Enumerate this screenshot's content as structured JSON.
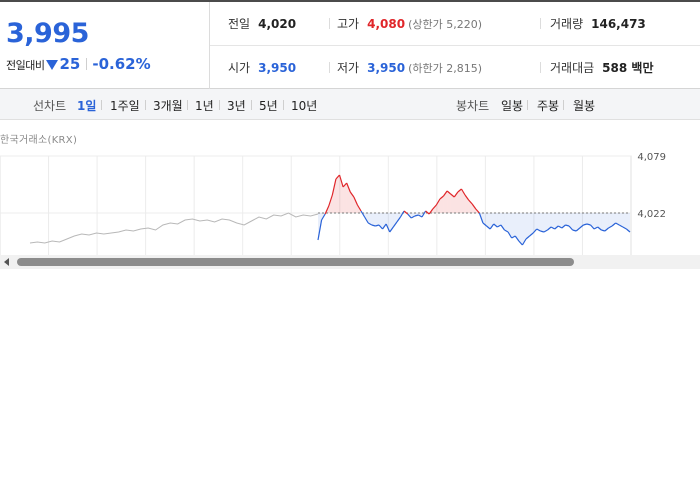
{
  "quote": {
    "price": "3,995",
    "change_label": "전일대비",
    "change_value": "25",
    "change_percent": "-0.62%",
    "direction": "down"
  },
  "summary": {
    "prev_close": {
      "label": "전일",
      "value": "4,020"
    },
    "high": {
      "label": "고가",
      "value": "4,080",
      "sub": "(상한가 5,220)"
    },
    "volume": {
      "label": "거래량",
      "value": "146,473"
    },
    "open": {
      "label": "시가",
      "value": "3,950"
    },
    "low": {
      "label": "저가",
      "value": "3,950",
      "sub": "(하한가 2,815)"
    },
    "turnover": {
      "label": "거래대금",
      "value": "588 백만"
    }
  },
  "period_bar": {
    "line_label": "선차트",
    "line_periods": [
      "1일",
      "1주일",
      "3개월",
      "1년",
      "3년",
      "5년",
      "10년"
    ],
    "active_period": "1일",
    "candle_label": "봉차트",
    "candle_periods": [
      "일봉",
      "주봉",
      "월봉"
    ]
  },
  "chart_source": "한국거래소(KRX)",
  "colors": {
    "up": "#e0262a",
    "down": "#2a63d8",
    "flat": "#b8b8b8"
  },
  "chart_data": {
    "type": "line",
    "baseline": 4022,
    "y_ticks": [
      4079,
      4022
    ],
    "y_tick_labels": [
      "4,079",
      "4,022"
    ],
    "ylim": [
      3985,
      4090
    ],
    "previous_period_values": [
      3992,
      3993,
      3992,
      3994,
      3993,
      3996,
      3999,
      4001,
      4000,
      4002,
      4001,
      4002,
      4003,
      4005,
      4004,
      4006,
      4007,
      4005,
      4010,
      4012,
      4011,
      4015,
      4016,
      4014,
      4015,
      4013,
      4016,
      4015,
      4012,
      4010,
      4014,
      4018,
      4016,
      4020,
      4019,
      4022,
      4018,
      4020,
      4019,
      4021
    ],
    "today_values": [
      3995,
      4015,
      4021,
      4029,
      4040,
      4056,
      4060,
      4048,
      4052,
      4043,
      4038,
      4030,
      4024,
      4018,
      4012,
      4010,
      4009,
      4010,
      4006,
      4011,
      4003,
      4008,
      4013,
      4018,
      4024,
      4021,
      4017,
      4019,
      4020,
      4018,
      4024,
      4021,
      4026,
      4030,
      4036,
      4039,
      4044,
      4041,
      4038,
      4043,
      4046,
      4040,
      4035,
      4031,
      4026,
      4022,
      4012,
      4009,
      4006,
      4011,
      4008,
      4010,
      4005,
      4003,
      3997,
      3999,
      3994,
      3990,
      3996,
      3999,
      4002,
      4006,
      4004,
      4003,
      4005,
      4008,
      4006,
      4009,
      4007,
      4010,
      4009,
      4005,
      4004,
      4007,
      4010,
      4011,
      4010,
      4006,
      4008,
      4005,
      4004,
      4007,
      4009,
      4012,
      4010,
      4008,
      4006,
      4003
    ]
  }
}
